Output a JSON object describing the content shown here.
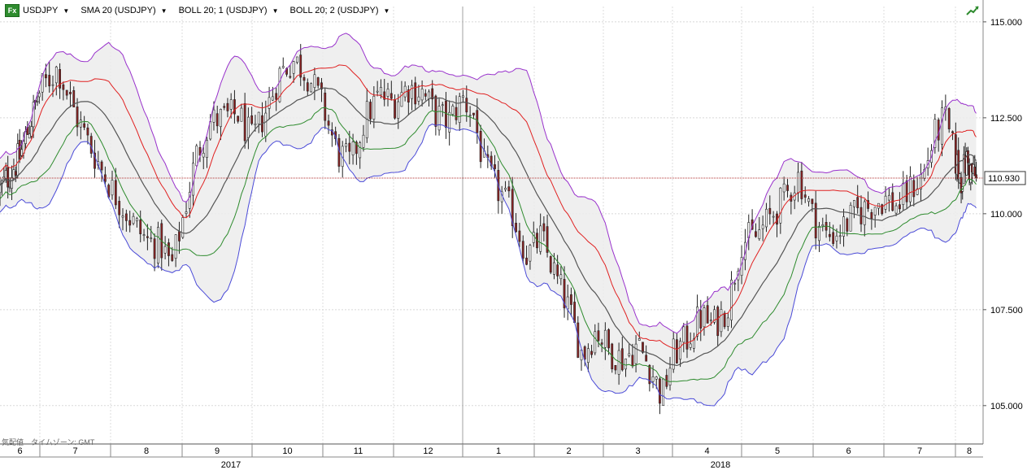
{
  "toolbar": {
    "symbol": "USDJPY",
    "fx_icon": "Fx",
    "indicators": [
      "SMA 20 (USDJPY)",
      "BOLL 20; 1 (USDJPY)",
      "BOLL 20; 2 (USDJPY)"
    ]
  },
  "footer_note": "気配値　タイムゾーン: GMT",
  "icons": {
    "trend": "trend-up-icon",
    "fx": "fx-icon"
  },
  "colors": {
    "up_candle": "#ffffff",
    "down_candle": "#8b2323",
    "sma": "#555555",
    "boll1_upper": "#e02020",
    "boll1_lower": "#2e8b2e",
    "boll2_upper": "#9932cc",
    "boll2_lower": "#4b4bd8",
    "band_fill": "#ececec",
    "last_price_line": "#b03030"
  },
  "chart_data": {
    "type": "candlestick",
    "symbol": "USDJPY",
    "last_price": 110.93,
    "y_ticks": [
      105.0,
      107.5,
      110.0,
      112.5,
      115.0
    ],
    "y_tick_labels": [
      "105.000",
      "107.500",
      "110.000",
      "112.500",
      "115.000"
    ],
    "ylim": [
      104.0,
      115.4
    ],
    "months": [
      "6",
      "7",
      "8",
      "9",
      "10",
      "11",
      "12",
      "1",
      "2",
      "3",
      "4",
      "5",
      "6",
      "7",
      "8"
    ],
    "years": [
      "2017",
      "2018"
    ],
    "overlays": [
      "SMA 20",
      "BOLL 20; 1",
      "BOLL 20; 2"
    ],
    "close_path": [
      {
        "m": 0.0,
        "c": 110.6
      },
      {
        "m": 0.5,
        "c": 111.5
      },
      {
        "m": 0.8,
        "c": 112.5
      },
      {
        "m": 1.0,
        "c": 113.2
      },
      {
        "m": 1.25,
        "c": 113.8
      },
      {
        "m": 1.5,
        "c": 112.6
      },
      {
        "m": 1.7,
        "c": 111.8
      },
      {
        "m": 2.0,
        "c": 110.7
      },
      {
        "m": 2.3,
        "c": 109.8
      },
      {
        "m": 2.5,
        "c": 109.3
      },
      {
        "m": 2.7,
        "c": 109.2
      },
      {
        "m": 2.85,
        "c": 108.6
      },
      {
        "m": 3.0,
        "c": 109.8
      },
      {
        "m": 3.2,
        "c": 111.5
      },
      {
        "m": 3.4,
        "c": 112.4
      },
      {
        "m": 3.6,
        "c": 112.5
      },
      {
        "m": 3.8,
        "c": 112.6
      },
      {
        "m": 4.0,
        "c": 111.9
      },
      {
        "m": 4.2,
        "c": 112.7
      },
      {
        "m": 4.4,
        "c": 113.7
      },
      {
        "m": 4.6,
        "c": 114.0
      },
      {
        "m": 4.8,
        "c": 113.6
      },
      {
        "m": 5.0,
        "c": 112.8
      },
      {
        "m": 5.2,
        "c": 111.6
      },
      {
        "m": 5.4,
        "c": 111.3
      },
      {
        "m": 5.6,
        "c": 112.5
      },
      {
        "m": 5.8,
        "c": 113.1
      },
      {
        "m": 6.0,
        "c": 112.9
      },
      {
        "m": 6.2,
        "c": 113.3
      },
      {
        "m": 6.4,
        "c": 113.2
      },
      {
        "m": 6.6,
        "c": 112.6
      },
      {
        "m": 6.8,
        "c": 112.4
      },
      {
        "m": 7.0,
        "c": 113.0
      },
      {
        "m": 7.15,
        "c": 112.6
      },
      {
        "m": 7.3,
        "c": 111.2
      },
      {
        "m": 7.5,
        "c": 110.6
      },
      {
        "m": 7.7,
        "c": 110.0
      },
      {
        "m": 7.9,
        "c": 108.9
      },
      {
        "m": 8.1,
        "c": 109.4
      },
      {
        "m": 8.3,
        "c": 108.4
      },
      {
        "m": 8.5,
        "c": 107.5
      },
      {
        "m": 8.7,
        "c": 106.3
      },
      {
        "m": 8.9,
        "c": 107.0
      },
      {
        "m": 9.1,
        "c": 106.4
      },
      {
        "m": 9.3,
        "c": 106.2
      },
      {
        "m": 9.5,
        "c": 106.6
      },
      {
        "m": 9.7,
        "c": 105.9
      },
      {
        "m": 9.85,
        "c": 105.2
      },
      {
        "m": 10.0,
        "c": 106.3
      },
      {
        "m": 10.2,
        "c": 106.7
      },
      {
        "m": 10.4,
        "c": 107.3
      },
      {
        "m": 10.6,
        "c": 107.1
      },
      {
        "m": 10.8,
        "c": 107.6
      },
      {
        "m": 11.0,
        "c": 109.3
      },
      {
        "m": 11.2,
        "c": 109.4
      },
      {
        "m": 11.4,
        "c": 109.9
      },
      {
        "m": 11.6,
        "c": 110.4
      },
      {
        "m": 11.8,
        "c": 111.0
      },
      {
        "m": 12.0,
        "c": 109.9
      },
      {
        "m": 12.2,
        "c": 109.4
      },
      {
        "m": 12.4,
        "c": 109.6
      },
      {
        "m": 12.6,
        "c": 110.0
      },
      {
        "m": 12.8,
        "c": 110.2
      },
      {
        "m": 13.0,
        "c": 110.4
      },
      {
        "m": 13.2,
        "c": 110.2
      },
      {
        "m": 13.4,
        "c": 110.7
      },
      {
        "m": 13.55,
        "c": 111.0
      },
      {
        "m": 13.7,
        "c": 112.0
      },
      {
        "m": 13.85,
        "c": 112.5
      },
      {
        "m": 14.0,
        "c": 111.4
      },
      {
        "m": 14.2,
        "c": 110.9
      },
      {
        "m": 14.4,
        "c": 111.4
      },
      {
        "m": 14.55,
        "c": 111.1
      },
      {
        "m": 14.75,
        "c": 110.93
      }
    ]
  }
}
